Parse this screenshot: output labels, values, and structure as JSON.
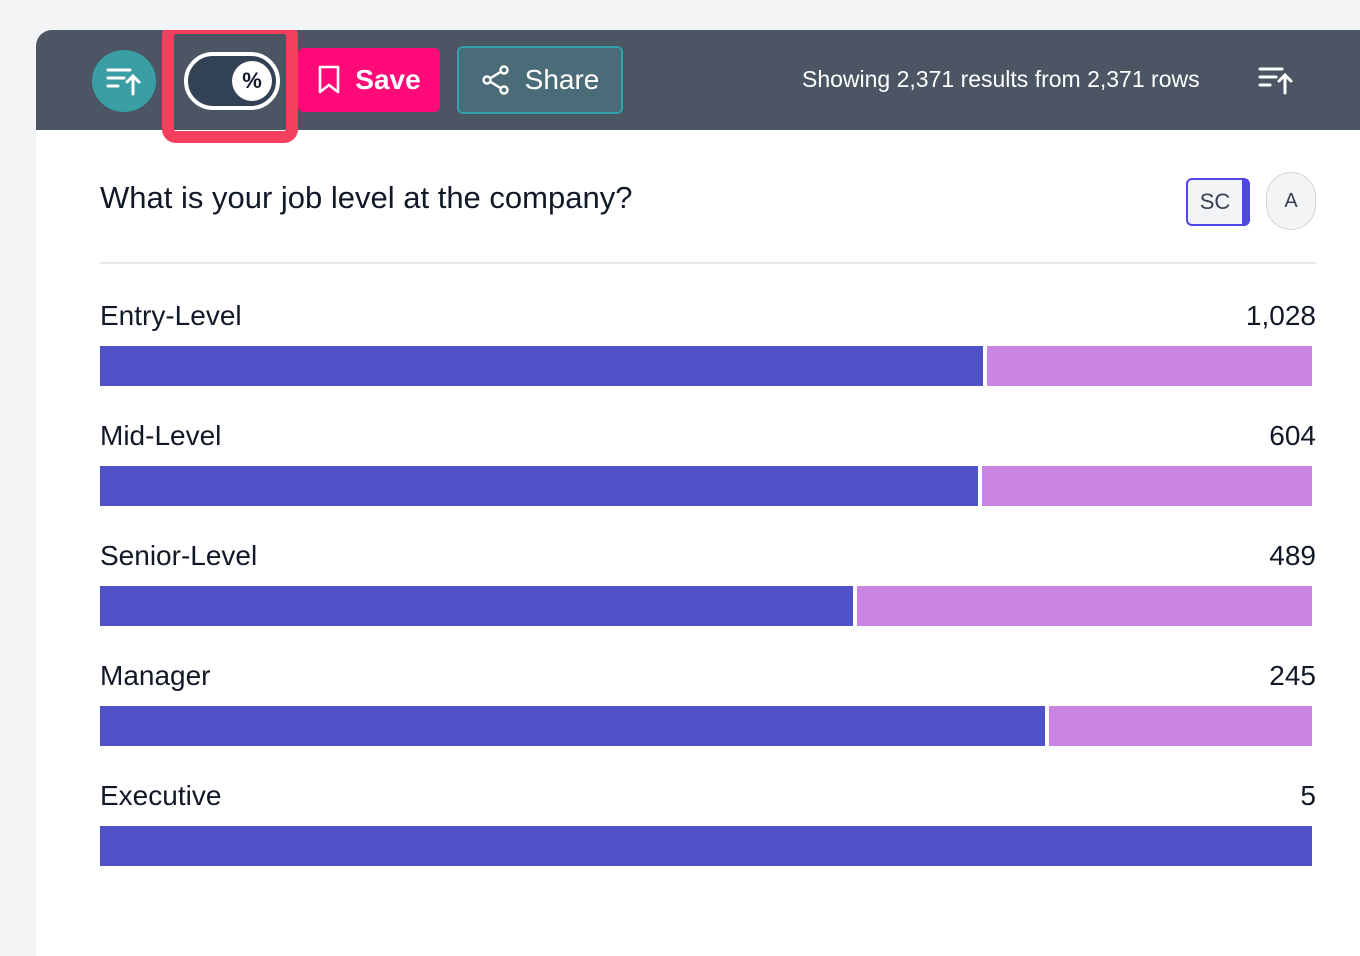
{
  "toolbar": {
    "toggle_symbol": "%",
    "save_label": "Save",
    "share_label": "Share",
    "results_text": "Showing 2,371 results from 2,371 rows",
    "sort_icon": "sort-ascending-icon",
    "highlight_color": "#f43f5e",
    "save_color": "#ff0a78"
  },
  "question": {
    "title": "What is your job level at the company?",
    "sc_label": "SC",
    "a_label": "A"
  },
  "colors": {
    "series_a": "#5050c8",
    "series_b": "#cc84e4"
  },
  "rows": [
    {
      "label": "Entry-Level",
      "count": "1,028",
      "fraction_a": 0.731
    },
    {
      "label": "Mid-Level",
      "count": "604",
      "fraction_a": 0.727
    },
    {
      "label": "Senior-Level",
      "count": "489",
      "fraction_a": 0.623
    },
    {
      "label": "Manager",
      "count": "245",
      "fraction_a": 0.782
    },
    {
      "label": "Executive",
      "count": "5",
      "fraction_a": 1.0
    }
  ]
}
